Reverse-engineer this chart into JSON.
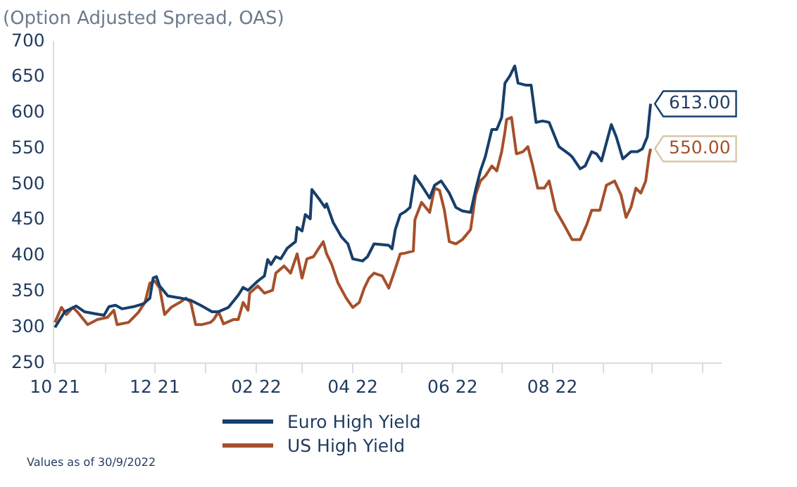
{
  "chart_data": {
    "type": "line",
    "title": "(Option Adjusted Spread, OAS)",
    "annotations": [
      "Values as of 30/9/2022"
    ],
    "xlim": [
      "2021-09-30",
      "2022-11-12"
    ],
    "xticks": [
      {
        "value": "2021-10-01",
        "label": "10 21"
      },
      {
        "value": "2021-11-01",
        "label": null
      },
      {
        "value": "2021-12-01",
        "label": "12 21"
      },
      {
        "value": "2022-01-01",
        "label": null
      },
      {
        "value": "2022-02-01",
        "label": "02 22"
      },
      {
        "value": "2022-03-01",
        "label": null
      },
      {
        "value": "2022-04-01",
        "label": "04 22"
      },
      {
        "value": "2022-05-01",
        "label": null
      },
      {
        "value": "2022-06-01",
        "label": "06 22"
      },
      {
        "value": "2022-07-01",
        "label": null
      },
      {
        "value": "2022-08-01",
        "label": "08 22"
      },
      {
        "value": "2022-09-01",
        "label": null
      },
      {
        "value": "2022-10-01",
        "label": null
      },
      {
        "value": "2022-11-01",
        "label": null
      }
    ],
    "ylim": [
      250,
      700
    ],
    "yticks": [
      250,
      300,
      350,
      400,
      450,
      500,
      550,
      600,
      650,
      700
    ],
    "grid": false,
    "legend": "bottom",
    "marker": "none",
    "line_style": "solid",
    "series": [
      {
        "name": "Euro High Yield",
        "color": "#173f6b",
        "x": [
          "2021-10-01",
          "2021-10-07",
          "2021-10-14",
          "2021-10-19",
          "2021-10-26",
          "2021-10-31",
          "2021-11-03",
          "2021-11-07",
          "2021-11-11",
          "2021-11-18",
          "2021-11-24",
          "2021-11-28",
          "2021-11-30",
          "2021-12-02",
          "2021-12-04",
          "2021-12-09",
          "2021-12-17",
          "2021-12-23",
          "2021-12-29",
          "2022-01-05",
          "2022-01-09",
          "2022-01-15",
          "2022-01-21",
          "2022-01-24",
          "2022-01-27",
          "2022-02-02",
          "2022-02-06",
          "2022-02-08",
          "2022-02-10",
          "2022-02-13",
          "2022-02-16",
          "2022-02-20",
          "2022-02-25",
          "2022-02-26",
          "2022-03-01",
          "2022-03-03",
          "2022-03-06",
          "2022-03-07",
          "2022-03-12",
          "2022-03-15",
          "2022-03-16",
          "2022-03-20",
          "2022-03-25",
          "2022-03-29",
          "2022-04-01",
          "2022-04-07",
          "2022-04-10",
          "2022-04-14",
          "2022-04-23",
          "2022-04-25",
          "2022-04-27",
          "2022-04-30",
          "2022-05-03",
          "2022-05-06",
          "2022-05-09",
          "2022-05-13",
          "2022-05-18",
          "2022-05-21",
          "2022-05-25",
          "2022-05-30",
          "2022-06-03",
          "2022-06-07",
          "2022-06-12",
          "2022-06-15",
          "2022-06-18",
          "2022-06-21",
          "2022-06-25",
          "2022-06-28",
          "2022-07-01",
          "2022-07-03",
          "2022-07-06",
          "2022-07-09",
          "2022-07-11",
          "2022-07-16",
          "2022-07-19",
          "2022-07-22",
          "2022-07-26",
          "2022-07-30",
          "2022-08-05",
          "2022-08-11",
          "2022-08-13",
          "2022-08-18",
          "2022-08-21",
          "2022-08-25",
          "2022-08-28",
          "2022-08-31",
          "2022-09-06",
          "2022-09-09",
          "2022-09-13",
          "2022-09-18",
          "2022-09-22",
          "2022-09-25",
          "2022-09-28",
          "2022-09-30"
        ],
        "values": [
          300,
          322,
          330,
          322,
          319,
          317,
          329,
          331,
          326,
          329,
          333,
          341,
          369,
          371,
          358,
          344,
          341,
          338,
          331,
          322,
          322,
          328,
          345,
          356,
          352,
          365,
          372,
          395,
          388,
          399,
          396,
          411,
          420,
          440,
          435,
          458,
          452,
          493,
          478,
          468,
          473,
          447,
          427,
          417,
          396,
          393,
          399,
          417,
          415,
          410,
          437,
          458,
          462,
          468,
          512,
          499,
          481,
          499,
          505,
          488,
          468,
          463,
          461,
          492,
          519,
          539,
          577,
          577,
          594,
          642,
          652,
          666,
          642,
          639,
          639,
          587,
          589,
          587,
          553,
          543,
          539,
          522,
          526,
          546,
          543,
          533,
          584,
          567,
          536,
          546,
          546,
          550,
          567,
          613
        ],
        "value_labels": [
          null,
          null,
          null,
          null,
          null,
          null,
          null,
          null,
          null,
          null,
          null,
          null,
          null,
          null,
          null,
          null,
          null,
          null,
          null,
          null,
          null,
          null,
          null,
          null,
          null,
          null,
          null,
          null,
          null,
          null,
          null,
          null,
          null,
          null,
          null,
          null,
          null,
          null,
          null,
          null,
          null,
          null,
          null,
          null,
          null,
          null,
          null,
          null,
          null,
          null,
          null,
          null,
          null,
          null,
          null,
          null,
          null,
          null,
          null,
          null,
          null,
          null,
          null,
          null,
          null,
          null,
          null,
          null,
          null,
          null,
          null,
          null,
          null,
          null,
          null,
          null,
          null,
          null,
          null,
          null,
          null,
          null,
          null,
          null,
          null,
          null,
          null,
          null,
          null,
          null,
          null,
          null,
          null,
          "613.00"
        ]
      },
      {
        "name": "US High Yield",
        "color": "#a5502a",
        "x": [
          "2021-10-01",
          "2021-10-05",
          "2021-10-08",
          "2021-10-12",
          "2021-10-15",
          "2021-10-21",
          "2021-10-27",
          "2021-11-02",
          "2021-11-06",
          "2021-11-08",
          "2021-11-15",
          "2021-11-21",
          "2021-11-25",
          "2021-11-28",
          "2021-12-01",
          "2021-12-04",
          "2021-12-07",
          "2021-12-11",
          "2021-12-17",
          "2021-12-20",
          "2021-12-23",
          "2021-12-26",
          "2021-12-30",
          "2022-01-04",
          "2022-01-06",
          "2022-01-09",
          "2022-01-12",
          "2022-01-18",
          "2022-01-21",
          "2022-01-24",
          "2022-01-27",
          "2022-01-28",
          "2022-02-02",
          "2022-02-06",
          "2022-02-11",
          "2022-02-13",
          "2022-02-18",
          "2022-02-22",
          "2022-02-26",
          "2022-03-01",
          "2022-03-04",
          "2022-03-08",
          "2022-03-11",
          "2022-03-14",
          "2022-03-16",
          "2022-03-19",
          "2022-03-23",
          "2022-03-28",
          "2022-04-01",
          "2022-04-05",
          "2022-04-08",
          "2022-04-11",
          "2022-04-14",
          "2022-04-19",
          "2022-04-23",
          "2022-04-27",
          "2022-04-30",
          "2022-05-03",
          "2022-05-08",
          "2022-05-09",
          "2022-05-13",
          "2022-05-18",
          "2022-05-21",
          "2022-05-24",
          "2022-05-27",
          "2022-05-30",
          "2022-06-03",
          "2022-06-07",
          "2022-06-12",
          "2022-06-15",
          "2022-06-18",
          "2022-06-21",
          "2022-06-25",
          "2022-06-28",
          "2022-07-01",
          "2022-07-03",
          "2022-07-04",
          "2022-07-07",
          "2022-07-10",
          "2022-07-14",
          "2022-07-17",
          "2022-07-20",
          "2022-07-23",
          "2022-07-27",
          "2022-07-30",
          "2022-08-03",
          "2022-08-08",
          "2022-08-13",
          "2022-08-18",
          "2022-08-22",
          "2022-08-25",
          "2022-08-30",
          "2022-09-03",
          "2022-09-08",
          "2022-09-12",
          "2022-09-15",
          "2022-09-18",
          "2022-09-21",
          "2022-09-24",
          "2022-09-27",
          "2022-09-29",
          "2022-09-30"
        ],
        "values": [
          307,
          328,
          318,
          328,
          321,
          304,
          311,
          314,
          324,
          304,
          307,
          321,
          335,
          362,
          365,
          355,
          318,
          328,
          336,
          341,
          335,
          304,
          304,
          307,
          311,
          322,
          305,
          311,
          311,
          335,
          324,
          348,
          358,
          348,
          352,
          376,
          386,
          376,
          403,
          369,
          396,
          399,
          410,
          420,
          403,
          389,
          362,
          341,
          328,
          335,
          355,
          369,
          376,
          372,
          355,
          382,
          403,
          404,
          407,
          451,
          475,
          461,
          495,
          492,
          464,
          420,
          417,
          423,
          437,
          485,
          505,
          512,
          526,
          519,
          546,
          574,
          591,
          594,
          543,
          546,
          553,
          526,
          495,
          495,
          505,
          464,
          444,
          423,
          423,
          444,
          464,
          464,
          499,
          505,
          485,
          454,
          468,
          495,
          488,
          505,
          539,
          550
        ],
        "value_labels": [
          null,
          null,
          null,
          null,
          null,
          null,
          null,
          null,
          null,
          null,
          null,
          null,
          null,
          null,
          null,
          null,
          null,
          null,
          null,
          null,
          null,
          null,
          null,
          null,
          null,
          null,
          null,
          null,
          null,
          null,
          null,
          null,
          null,
          null,
          null,
          null,
          null,
          null,
          null,
          null,
          null,
          null,
          null,
          null,
          null,
          null,
          null,
          null,
          null,
          null,
          null,
          null,
          null,
          null,
          null,
          null,
          null,
          null,
          null,
          null,
          null,
          null,
          null,
          null,
          null,
          null,
          null,
          null,
          null,
          null,
          null,
          null,
          null,
          null,
          null,
          null,
          null,
          null,
          null,
          null,
          null,
          null,
          null,
          null,
          null,
          null,
          null,
          null,
          null,
          null,
          null,
          null,
          null,
          null,
          null,
          null,
          null,
          null,
          null,
          null,
          null,
          "550.00"
        ]
      }
    ]
  }
}
